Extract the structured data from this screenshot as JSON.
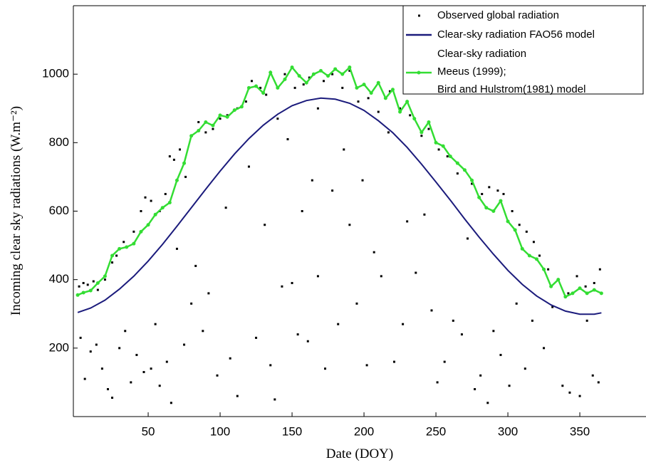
{
  "chart_data": {
    "type": "scatter-line",
    "x_label": "Date (DOY)",
    "y_label": "Incoming clear sky radiations (W.m⁻²)",
    "xlim": [
      -2,
      396
    ],
    "xticks": [
      50,
      100,
      150,
      200,
      250,
      300,
      350
    ],
    "ylim": [
      0,
      1200
    ],
    "yticks": [
      200,
      400,
      600,
      800,
      1000
    ],
    "grid": false,
    "legend": "top-right",
    "series": [
      {
        "name": "Observed global radiation",
        "kind": "scatter",
        "color": "#000000",
        "x": [
          2,
          5,
          8,
          12,
          15,
          20,
          25,
          28,
          33,
          40,
          45,
          48,
          52,
          58,
          62,
          65,
          68,
          72,
          76,
          80,
          85,
          90,
          95,
          100,
          105,
          112,
          118,
          122,
          128,
          132,
          140,
          145,
          152,
          158,
          162,
          168,
          172,
          178,
          185,
          190,
          196,
          203,
          210,
          218,
          225,
          232,
          240,
          245,
          252,
          258,
          265,
          270,
          275,
          282,
          287,
          293,
          297,
          303,
          308,
          313,
          318,
          322,
          328,
          335,
          342,
          348,
          354,
          360,
          364,
          3,
          6,
          10,
          14,
          18,
          22,
          25,
          30,
          34,
          38,
          42,
          47,
          52,
          55,
          58,
          63,
          66,
          70,
          75,
          80,
          83,
          88,
          92,
          98,
          104,
          107,
          112,
          120,
          125,
          131,
          135,
          138,
          143,
          147,
          150,
          154,
          157,
          161,
          164,
          168,
          173,
          178,
          182,
          186,
          190,
          195,
          199,
          202,
          207,
          212,
          217,
          221,
          227,
          230,
          236,
          242,
          247,
          251,
          256,
          262,
          268,
          272,
          277,
          281,
          286,
          290,
          295,
          301,
          306,
          312,
          317,
          325,
          331,
          338,
          343,
          350,
          355,
          359,
          363
        ],
        "values": [
          380,
          390,
          385,
          395,
          370,
          400,
          450,
          470,
          510,
          540,
          600,
          640,
          630,
          600,
          650,
          760,
          750,
          780,
          700,
          820,
          860,
          830,
          840,
          870,
          880,
          900,
          920,
          980,
          960,
          940,
          870,
          1000,
          960,
          970,
          990,
          900,
          980,
          1000,
          960,
          1010,
          920,
          930,
          890,
          950,
          900,
          880,
          820,
          840,
          780,
          760,
          710,
          720,
          680,
          650,
          670,
          660,
          650,
          600,
          560,
          540,
          510,
          470,
          430,
          400,
          360,
          410,
          380,
          390,
          430,
          230,
          110,
          190,
          210,
          140,
          80,
          55,
          200,
          250,
          100,
          180,
          130,
          140,
          270,
          90,
          160,
          40,
          490,
          210,
          330,
          440,
          250,
          360,
          120,
          610,
          170,
          60,
          730,
          230,
          560,
          150,
          50,
          380,
          810,
          390,
          240,
          600,
          220,
          690,
          410,
          140,
          660,
          270,
          780,
          560,
          330,
          690,
          150,
          480,
          410,
          830,
          160,
          270,
          570,
          420,
          590,
          310,
          100,
          160,
          280,
          240,
          520,
          80,
          120,
          40,
          250,
          180,
          90,
          330,
          140,
          280,
          200,
          320,
          90,
          70,
          60,
          280,
          120,
          100
        ]
      },
      {
        "name": "Clear-sky radiation FAO56 model",
        "kind": "line",
        "color": "#1b1b7c",
        "x": [
          1,
          10,
          20,
          30,
          40,
          50,
          60,
          70,
          80,
          90,
          100,
          110,
          120,
          130,
          140,
          150,
          160,
          170,
          180,
          190,
          200,
          210,
          220,
          230,
          240,
          250,
          260,
          270,
          280,
          290,
          300,
          310,
          320,
          330,
          340,
          350,
          360,
          365
        ],
        "values": [
          304,
          317,
          340,
          372,
          410,
          454,
          503,
          556,
          610,
          664,
          717,
          767,
          812,
          851,
          883,
          908,
          923,
          930,
          927,
          915,
          894,
          864,
          829,
          786,
          737,
          685,
          632,
          577,
          524,
          474,
          427,
          386,
          352,
          326,
          308,
          299,
          299,
          303
        ]
      },
      {
        "name": [
          "Clear-sky radiation",
          "Meeus (1999);",
          "Bird and Hulstrom(1981) model"
        ],
        "kind": "line-markers",
        "color": "#33dd33",
        "x": [
          1,
          5,
          10,
          15,
          20,
          25,
          30,
          35,
          40,
          45,
          50,
          55,
          60,
          65,
          70,
          75,
          80,
          85,
          90,
          95,
          100,
          105,
          110,
          115,
          120,
          125,
          130,
          135,
          140,
          145,
          150,
          155,
          160,
          165,
          170,
          175,
          180,
          185,
          190,
          195,
          200,
          205,
          210,
          215,
          220,
          225,
          230,
          235,
          240,
          245,
          250,
          255,
          260,
          265,
          270,
          275,
          280,
          285,
          290,
          295,
          300,
          305,
          310,
          315,
          320,
          325,
          330,
          335,
          340,
          345,
          350,
          355,
          360,
          365
        ],
        "values": [
          355,
          362,
          368,
          390,
          410,
          470,
          490,
          495,
          505,
          540,
          560,
          590,
          610,
          625,
          690,
          740,
          820,
          835,
          860,
          850,
          880,
          875,
          895,
          905,
          960,
          965,
          945,
          1005,
          960,
          985,
          1020,
          995,
          975,
          1000,
          1010,
          995,
          1015,
          1000,
          1020,
          960,
          970,
          945,
          975,
          930,
          955,
          890,
          920,
          870,
          830,
          860,
          800,
          790,
          760,
          740,
          720,
          690,
          640,
          610,
          600,
          630,
          570,
          545,
          490,
          470,
          460,
          430,
          380,
          400,
          350,
          360,
          375,
          360,
          370,
          360
        ]
      }
    ]
  }
}
